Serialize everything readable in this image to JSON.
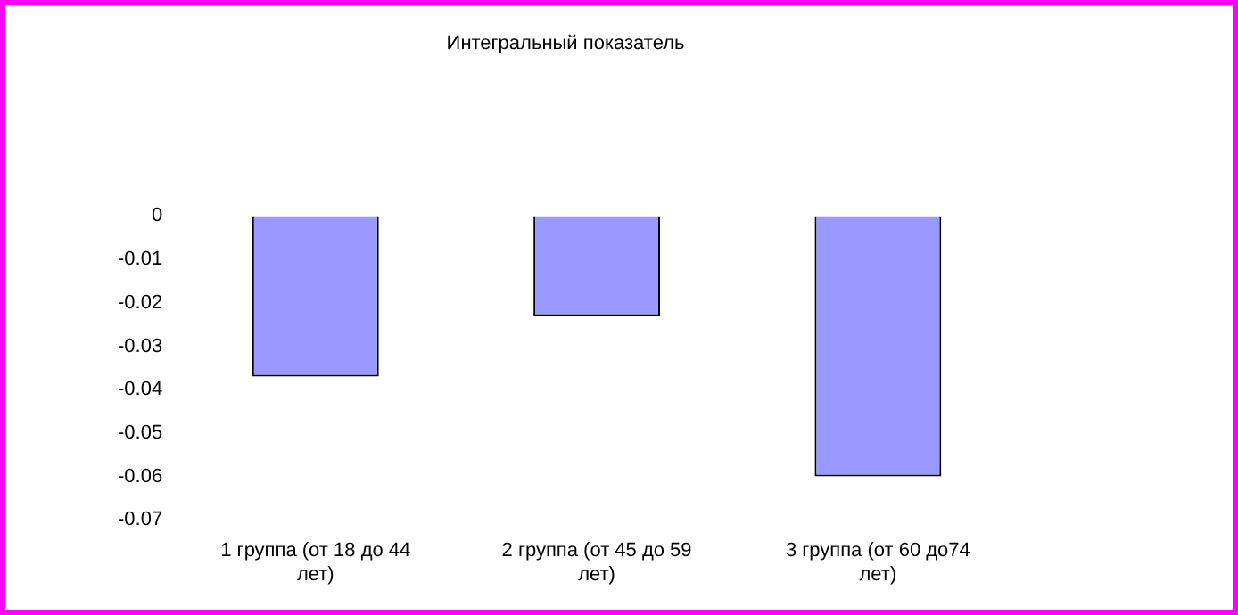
{
  "chart_data": {
    "type": "bar",
    "title": "Интегральный показатель",
    "categories": [
      "1 группа (от 18 до 44 лет)",
      "2 группа (от 45 до 59 лет)",
      "3 группа (от 60 до74 лет)"
    ],
    "values": [
      -0.037,
      -0.023,
      -0.06
    ],
    "color": "#9999ff",
    "ylim": [
      -0.07,
      0
    ],
    "yticks": [
      -0.07,
      -0.06,
      -0.05,
      -0.04,
      -0.03,
      -0.02,
      -0.01,
      0
    ],
    "grid": false,
    "legend": false
  }
}
